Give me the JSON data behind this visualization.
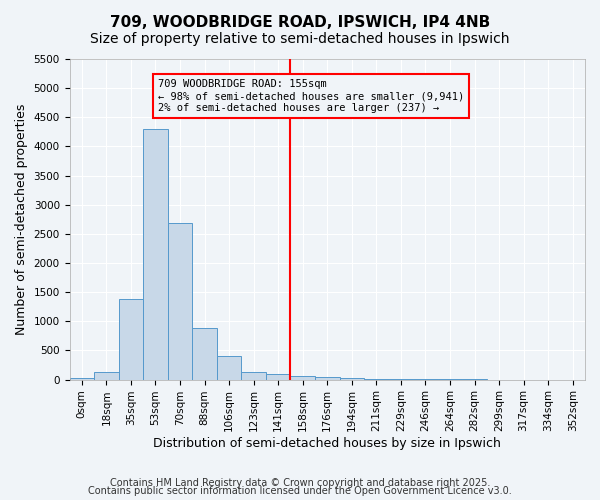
{
  "title_line1": "709, WOODBRIDGE ROAD, IPSWICH, IP4 4NB",
  "title_line2": "Size of property relative to semi-detached houses in Ipswich",
  "xlabel": "Distribution of semi-detached houses by size in Ipswich",
  "ylabel": "Number of semi-detached properties",
  "footnote_line1": "Contains HM Land Registry data © Crown copyright and database right 2025.",
  "footnote_line2": "Contains public sector information licensed under the Open Government Licence v3.0.",
  "bin_labels": [
    "0sqm",
    "18sqm",
    "35sqm",
    "53sqm",
    "70sqm",
    "88sqm",
    "106sqm",
    "123sqm",
    "141sqm",
    "158sqm",
    "176sqm",
    "194sqm",
    "211sqm",
    "229sqm",
    "246sqm",
    "264sqm",
    "282sqm",
    "299sqm",
    "317sqm",
    "334sqm",
    "352sqm"
  ],
  "bar_values": [
    20,
    130,
    1390,
    4300,
    2680,
    880,
    400,
    130,
    100,
    70,
    50,
    30,
    15,
    8,
    5,
    3,
    2,
    1,
    1,
    0,
    0
  ],
  "bar_color": "#c8d8e8",
  "bar_edge_color": "#5599cc",
  "vline_x": 8.5,
  "vline_color": "red",
  "annotation_title": "709 WOODBRIDGE ROAD: 155sqm",
  "annotation_line1": "← 98% of semi-detached houses are smaller (9,941)",
  "annotation_line2": "2% of semi-detached houses are larger (237) →",
  "annotation_box_color": "red",
  "ylim": [
    0,
    5500
  ],
  "yticks": [
    0,
    500,
    1000,
    1500,
    2000,
    2500,
    3000,
    3500,
    4000,
    4500,
    5000,
    5500
  ],
  "background_color": "#f0f4f8",
  "grid_color": "#ffffff",
  "title_fontsize": 11,
  "subtitle_fontsize": 10,
  "axis_label_fontsize": 9,
  "tick_fontsize": 7.5,
  "footnote_fontsize": 7
}
